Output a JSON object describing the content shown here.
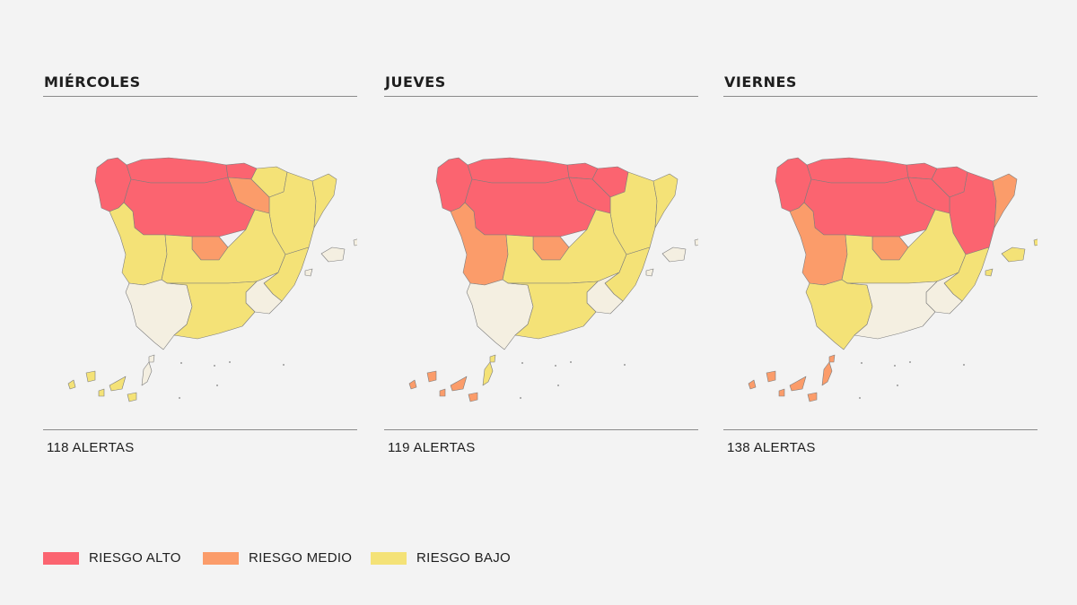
{
  "colors": {
    "background": "#f3f3f3",
    "riesgo_alto": "#fb6470",
    "riesgo_medio": "#fb9c6a",
    "riesgo_bajo": "#f4e277",
    "sin_riesgo": "#f4efe1",
    "outline": "#7d7d7d"
  },
  "panels": [
    {
      "title": "MIÉRCOLES",
      "alerts_label": "118 ALERTAS",
      "zones": [
        {
          "name": "galicia",
          "level": "alto"
        },
        {
          "name": "asturias-cantabria",
          "level": "alto"
        },
        {
          "name": "pais-vasco",
          "level": "alto"
        },
        {
          "name": "navarra",
          "level": "bajo"
        },
        {
          "name": "aragon",
          "level": "bajo"
        },
        {
          "name": "cataluna",
          "level": "bajo"
        },
        {
          "name": "castilla-leon",
          "level": "alto"
        },
        {
          "name": "rioja",
          "level": "medio"
        },
        {
          "name": "madrid",
          "level": "medio"
        },
        {
          "name": "extremadura",
          "level": "bajo"
        },
        {
          "name": "castilla-la-mancha",
          "level": "bajo"
        },
        {
          "name": "valencia",
          "level": "bajo"
        },
        {
          "name": "murcia",
          "level": "ninguno"
        },
        {
          "name": "andalucia-oeste",
          "level": "ninguno"
        },
        {
          "name": "andalucia-este",
          "level": "bajo"
        },
        {
          "name": "baleares",
          "level": "ninguno"
        },
        {
          "name": "canarias-oeste",
          "level": "bajo"
        },
        {
          "name": "canarias-este",
          "level": "ninguno"
        }
      ]
    },
    {
      "title": "JUEVES",
      "alerts_label": "119 ALERTAS",
      "zones": [
        {
          "name": "galicia",
          "level": "alto"
        },
        {
          "name": "asturias-cantabria",
          "level": "alto"
        },
        {
          "name": "pais-vasco",
          "level": "alto"
        },
        {
          "name": "navarra",
          "level": "alto"
        },
        {
          "name": "aragon",
          "level": "bajo"
        },
        {
          "name": "cataluna",
          "level": "bajo"
        },
        {
          "name": "castilla-leon",
          "level": "alto"
        },
        {
          "name": "rioja",
          "level": "alto"
        },
        {
          "name": "madrid",
          "level": "medio"
        },
        {
          "name": "extremadura",
          "level": "medio"
        },
        {
          "name": "castilla-la-mancha",
          "level": "bajo"
        },
        {
          "name": "valencia",
          "level": "bajo"
        },
        {
          "name": "murcia",
          "level": "ninguno"
        },
        {
          "name": "andalucia-oeste",
          "level": "ninguno"
        },
        {
          "name": "andalucia-este",
          "level": "bajo"
        },
        {
          "name": "baleares",
          "level": "ninguno"
        },
        {
          "name": "canarias-oeste",
          "level": "medio"
        },
        {
          "name": "canarias-este",
          "level": "bajo"
        }
      ]
    },
    {
      "title": "VIERNES",
      "alerts_label": "138 ALERTAS",
      "zones": [
        {
          "name": "galicia",
          "level": "alto"
        },
        {
          "name": "asturias-cantabria",
          "level": "alto"
        },
        {
          "name": "pais-vasco",
          "level": "alto"
        },
        {
          "name": "navarra",
          "level": "alto"
        },
        {
          "name": "aragon",
          "level": "alto"
        },
        {
          "name": "cataluna",
          "level": "medio"
        },
        {
          "name": "castilla-leon",
          "level": "alto"
        },
        {
          "name": "rioja",
          "level": "alto"
        },
        {
          "name": "madrid",
          "level": "medio"
        },
        {
          "name": "extremadura",
          "level": "medio"
        },
        {
          "name": "castilla-la-mancha",
          "level": "bajo"
        },
        {
          "name": "valencia",
          "level": "bajo"
        },
        {
          "name": "murcia",
          "level": "ninguno"
        },
        {
          "name": "andalucia-oeste",
          "level": "bajo"
        },
        {
          "name": "andalucia-este",
          "level": "ninguno"
        },
        {
          "name": "baleares",
          "level": "bajo"
        },
        {
          "name": "canarias-oeste",
          "level": "medio"
        },
        {
          "name": "canarias-este",
          "level": "medio"
        }
      ]
    }
  ],
  "legend": [
    {
      "label": "RIESGO ALTO",
      "color": "#fb6470"
    },
    {
      "label": "RIESGO MEDIO",
      "color": "#fb9c6a"
    },
    {
      "label": "RIESGO BAJO",
      "color": "#f4e277"
    }
  ]
}
